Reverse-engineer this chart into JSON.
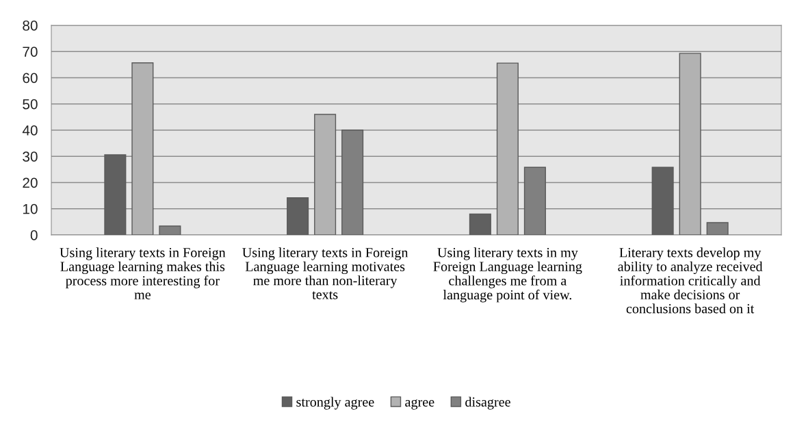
{
  "chart_data": {
    "type": "bar",
    "categories": [
      "Using literary texts in Foreign Language learning makes this process more interesting for me",
      "Using literary texts in Foreign Language learning motivates me more than non-literary texts",
      "Using literary texts in my Foreign Language learning challenges me from a language point of view.",
      "Literary texts develop my ability to analyze received information critically and make decisions or conclusions based on it"
    ],
    "series": [
      {
        "name": "strongly agree",
        "color": "#606060",
        "values": [
          30.6,
          14.2,
          8.0,
          25.8
        ]
      },
      {
        "name": "agree",
        "color": "#b2b2b2",
        "values": [
          65.7,
          46.0,
          65.6,
          69.3
        ]
      },
      {
        "name": "disagree",
        "color": "#808080",
        "values": [
          3.4,
          40.0,
          25.8,
          4.7
        ]
      }
    ],
    "ylim": [
      0,
      80
    ],
    "yticks": [
      0,
      10,
      20,
      30,
      40,
      50,
      60,
      70,
      80
    ],
    "grid": "y",
    "legend": "bottom"
  }
}
